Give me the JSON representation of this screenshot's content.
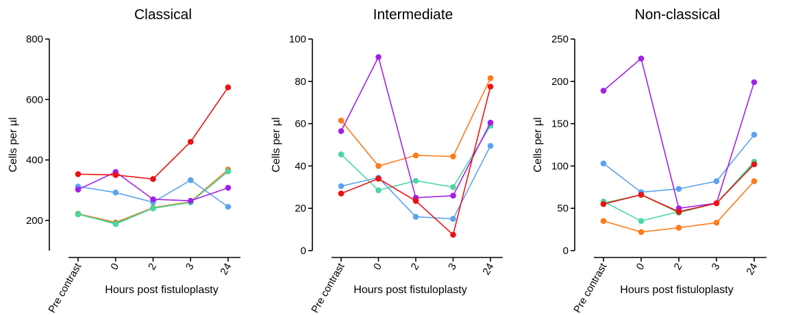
{
  "figure": {
    "background": "#ffffff"
  },
  "chart_data": [
    {
      "type": "line",
      "title": "Classical",
      "xlabel": "Hours post fistuloplasty",
      "ylabel": "Cells per µl",
      "categories": [
        "Pre contrast",
        "0",
        "2",
        "3",
        "24"
      ],
      "ylim": [
        100,
        800
      ],
      "yticks": [
        200,
        400,
        600,
        800
      ],
      "series": [
        {
          "color": "#ff7a1a",
          "values": [
            222,
            193,
            242,
            262,
            368
          ]
        },
        {
          "color": "#3fba6a",
          "values": [
            220,
            190,
            240,
            260,
            362
          ]
        },
        {
          "color": "#4ad8a0",
          "values": [
            221,
            188,
            240,
            260,
            362
          ]
        },
        {
          "color": "#5ba3f0",
          "values": [
            312,
            292,
            260,
            333,
            245
          ]
        },
        {
          "color": "#a020e8",
          "values": [
            302,
            360,
            270,
            265,
            308
          ]
        },
        {
          "color": "#ee1111",
          "values": [
            353,
            350,
            337,
            460,
            640
          ]
        }
      ]
    },
    {
      "type": "line",
      "title": "Intermediate",
      "xlabel": "Hours post fistuloplasty",
      "ylabel": "Cells per µl",
      "categories": [
        "Pre contrast",
        "0",
        "2",
        "3",
        "24"
      ],
      "ylim": [
        0,
        100
      ],
      "yticks": [
        0,
        20,
        40,
        60,
        80,
        100
      ],
      "series": [
        {
          "color": "#ff7a1a",
          "values": [
            61.5,
            40,
            45,
            44.5,
            81.5
          ]
        },
        {
          "color": "#4ad8a0",
          "values": [
            45.5,
            28.5,
            33,
            30,
            59
          ]
        },
        {
          "color": "#5ba3f0",
          "values": [
            30.5,
            34.5,
            16,
            15,
            49.5
          ]
        },
        {
          "color": "#a020e8",
          "values": [
            56.5,
            91.5,
            25,
            26,
            60.5
          ]
        },
        {
          "color": "#ee1111",
          "values": [
            27,
            34,
            23.5,
            7.5,
            77.5
          ]
        }
      ]
    },
    {
      "type": "line",
      "title": "Non-classical",
      "xlabel": "Hours post fistuloplasty",
      "ylabel": "Cells per µl",
      "categories": [
        "Pre contrast",
        "0",
        "2",
        "3",
        "24"
      ],
      "ylim": [
        0,
        250
      ],
      "yticks": [
        0,
        50,
        100,
        150,
        200,
        250
      ],
      "series": [
        {
          "color": "#ff7a1a",
          "values": [
            35,
            22,
            27,
            33,
            82
          ]
        },
        {
          "color": "#3fba6a",
          "values": [
            56,
            66,
            45,
            56,
            103
          ]
        },
        {
          "color": "#4ad8a0",
          "values": [
            58,
            35,
            46,
            56,
            105
          ]
        },
        {
          "color": "#5ba3f0",
          "values": [
            103,
            69,
            73,
            82,
            137
          ]
        },
        {
          "color": "#a020e8",
          "values": [
            189,
            227,
            50,
            56,
            199
          ]
        },
        {
          "color": "#ee1111",
          "values": [
            55,
            66,
            46,
            56,
            102
          ]
        }
      ]
    }
  ]
}
